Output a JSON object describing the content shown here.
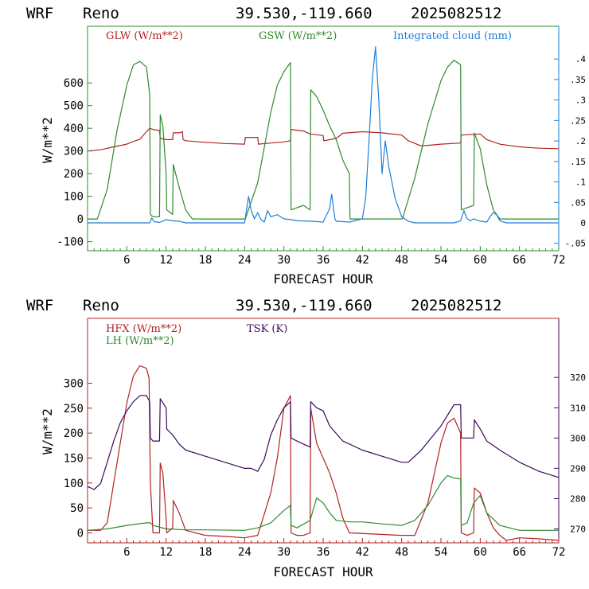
{
  "chart_data": [
    {
      "type": "line",
      "header": {
        "model": "WRF",
        "station": "Reno",
        "coords": "39.530,-119.660",
        "run": "2025082512"
      },
      "xlabel": "FORECAST HOUR",
      "ylabel": "W/m**2",
      "x_ticks": [
        6,
        12,
        18,
        24,
        30,
        36,
        42,
        48,
        54,
        60,
        66,
        72
      ],
      "xlim": [
        0,
        72
      ],
      "ylim": [
        -140,
        850
      ],
      "y_ticks": [
        -100,
        0,
        100,
        200,
        300,
        400,
        500,
        600
      ],
      "y2lim": [
        -0.068,
        0.48
      ],
      "y2_ticks": [
        -0.05,
        0,
        0.05,
        0.1,
        0.15,
        0.2,
        0.25,
        0.3,
        0.35,
        0.4
      ],
      "y2_tick_labels": [
        "-.05",
        "0",
        ".05",
        ".1",
        ".15",
        ".2",
        ".25",
        ".3",
        ".35",
        ".4"
      ],
      "series": [
        {
          "name": "GLW (W/m**2)",
          "color": "#b22222",
          "axis": "left",
          "x": [
            0,
            2,
            4,
            6,
            7,
            8,
            9,
            9.5,
            10,
            11,
            11.1,
            12,
            13,
            13.1,
            14,
            14.5,
            14.6,
            15,
            18,
            21,
            24,
            24.1,
            26,
            26.1,
            28,
            30,
            31,
            31.1,
            33,
            34,
            36,
            36.1,
            38,
            39,
            42,
            45,
            48,
            49,
            51,
            54,
            57,
            57.1,
            60,
            61,
            63,
            66,
            69,
            72
          ],
          "y": [
            300,
            305,
            318,
            330,
            342,
            352,
            385,
            400,
            395,
            390,
            355,
            350,
            350,
            380,
            380,
            385,
            350,
            345,
            338,
            333,
            330,
            360,
            360,
            330,
            335,
            340,
            345,
            395,
            388,
            375,
            368,
            345,
            355,
            378,
            385,
            380,
            370,
            345,
            322,
            330,
            335,
            370,
            375,
            350,
            330,
            318,
            312,
            310
          ]
        },
        {
          "name": "GSW (W/m**2)",
          "color": "#2e8b2e",
          "axis": "left",
          "x": [
            0,
            1.5,
            3,
            4.5,
            6,
            7,
            8,
            9,
            9.5,
            9.6,
            10,
            11,
            11.1,
            11.5,
            12,
            12.1,
            13,
            13.1,
            14,
            15,
            16,
            24,
            24.1,
            26,
            28,
            29,
            30,
            31,
            31.1,
            32,
            33,
            34,
            34.1,
            35,
            36,
            37,
            38,
            39,
            40,
            40.1,
            48,
            48.1,
            50,
            52,
            54,
            55,
            56,
            57,
            57.1,
            58,
            59,
            59.1,
            60,
            61,
            62,
            63,
            64,
            72
          ],
          "y": [
            0,
            0,
            130,
            390,
            590,
            680,
            695,
            670,
            550,
            20,
            10,
            10,
            460,
            410,
            200,
            40,
            20,
            240,
            140,
            40,
            0,
            0,
            0,
            160,
            470,
            590,
            650,
            690,
            40,
            50,
            60,
            40,
            570,
            540,
            480,
            410,
            350,
            260,
            200,
            0,
            0,
            0,
            180,
            420,
            610,
            670,
            700,
            680,
            40,
            50,
            60,
            380,
            310,
            150,
            40,
            0,
            0,
            0
          ]
        },
        {
          "name": "Integrated cloud (mm)",
          "color": "#1e7fd6",
          "axis": "right",
          "x": [
            0,
            9.5,
            9.8,
            10.2,
            11,
            12,
            13,
            14,
            15,
            24,
            24.6,
            25,
            25.5,
            26,
            26.5,
            27,
            27.5,
            28,
            29,
            30,
            31,
            32,
            34,
            36,
            37,
            37.3,
            37.8,
            38,
            40,
            42,
            42.5,
            43,
            43.5,
            44,
            44.5,
            45,
            45.5,
            46,
            47,
            48,
            49,
            50,
            56,
            57,
            57.5,
            58,
            58.5,
            59,
            60,
            61,
            61.5,
            62,
            62.5,
            63,
            64,
            72
          ],
          "y": [
            0,
            0,
            0.012,
            0.003,
            0.001,
            0.008,
            0.005,
            0.004,
            0,
            0,
            0.065,
            0.03,
            0.01,
            0.025,
            0.008,
            0.002,
            0.03,
            0.015,
            0.02,
            0.01,
            0.008,
            0.005,
            0.004,
            0.002,
            0.035,
            0.07,
            0.01,
            0.004,
            0.002,
            0.01,
            0.06,
            0.2,
            0.35,
            0.43,
            0.3,
            0.12,
            0.2,
            0.14,
            0.06,
            0.015,
            0.004,
            0,
            0,
            0.005,
            0.03,
            0.01,
            0.005,
            0.01,
            0.004,
            0.002,
            0.015,
            0.025,
            0.02,
            0.005,
            0,
            0
          ]
        }
      ]
    },
    {
      "type": "line",
      "header": {
        "model": "WRF",
        "station": "Reno",
        "coords": "39.530,-119.660",
        "run": "2025082512"
      },
      "xlabel": "FORECAST HOUR",
      "ylabel": "W/m**2",
      "x_ticks": [
        6,
        12,
        18,
        24,
        30,
        36,
        42,
        48,
        54,
        60,
        66,
        72
      ],
      "xlim": [
        0,
        72
      ],
      "ylim": [
        -20,
        430
      ],
      "y_ticks": [
        0,
        50,
        100,
        150,
        200,
        250,
        300
      ],
      "y2lim": [
        265.4,
        339.5
      ],
      "y2_ticks": [
        270,
        280,
        290,
        300,
        310,
        320
      ],
      "series": [
        {
          "name": "HFX (W/m**2)",
          "color": "#b22222",
          "axis": "left",
          "x": [
            0,
            2,
            3,
            4,
            5,
            6,
            7,
            8,
            9,
            9.4,
            9.6,
            10,
            11,
            11.1,
            11.5,
            12,
            12.1,
            13,
            13.1,
            14,
            15,
            18,
            21,
            24,
            26,
            28,
            29,
            30,
            31,
            31.1,
            32,
            33,
            34,
            34.1,
            35,
            36,
            37,
            38,
            39,
            40,
            48,
            50,
            52,
            53,
            54,
            55,
            56,
            57,
            57.1,
            58,
            59,
            59.1,
            60,
            61,
            62,
            63,
            64,
            66,
            69,
            72
          ],
          "y": [
            5,
            5,
            20,
            100,
            180,
            260,
            315,
            335,
            330,
            310,
            100,
            0,
            0,
            140,
            120,
            30,
            0,
            10,
            65,
            40,
            5,
            -5,
            -7,
            -10,
            -5,
            80,
            150,
            250,
            275,
            0,
            -5,
            -5,
            0,
            250,
            180,
            150,
            120,
            80,
            30,
            0,
            -5,
            -5,
            60,
            120,
            180,
            220,
            230,
            200,
            0,
            -5,
            0,
            90,
            80,
            40,
            10,
            -5,
            -15,
            -10,
            -12,
            -15
          ]
        },
        {
          "name": "LH (W/m**2)",
          "color": "#2e8b2e",
          "axis": "left",
          "x": [
            0,
            3,
            6,
            9,
            9.6,
            10,
            12,
            15,
            18,
            24,
            26,
            28,
            30,
            31,
            31.1,
            32,
            34,
            35,
            36,
            37,
            38,
            40,
            42,
            45,
            48,
            50,
            52,
            54,
            55,
            56,
            57,
            57.1,
            58,
            59,
            60,
            61,
            63,
            66,
            72
          ],
          "y": [
            5,
            8,
            15,
            20,
            20,
            15,
            8,
            6,
            6,
            5,
            10,
            20,
            45,
            55,
            15,
            10,
            25,
            70,
            60,
            40,
            25,
            22,
            22,
            18,
            15,
            25,
            55,
            100,
            115,
            110,
            108,
            15,
            20,
            60,
            75,
            40,
            15,
            5,
            5
          ]
        },
        {
          "name": "TSK (K)",
          "color": "#3b0a5c",
          "axis": "right",
          "x": [
            0,
            1,
            2,
            3,
            4,
            5,
            6,
            7,
            8,
            9,
            9.5,
            9.6,
            10,
            11,
            11.1,
            12,
            12.1,
            13,
            14,
            15,
            18,
            21,
            24,
            25,
            26,
            27,
            28,
            29,
            30,
            31,
            31.1,
            32,
            33,
            34,
            34.1,
            35,
            36,
            37,
            39,
            42,
            45,
            48,
            49,
            51,
            54,
            56,
            57,
            57.1,
            58,
            59,
            59.1,
            60,
            61,
            63,
            66,
            69,
            72
          ],
          "y": [
            284,
            283,
            285,
            292,
            299,
            305,
            309,
            312,
            314,
            314,
            312,
            300,
            299,
            299,
            313,
            310,
            303,
            301,
            298,
            296,
            294,
            292,
            290,
            290,
            289,
            293,
            301,
            306,
            310,
            312,
            300,
            299,
            298,
            297,
            312,
            310,
            309,
            304,
            299,
            296,
            294,
            292,
            292,
            296,
            304,
            311,
            311,
            300,
            300,
            300,
            306,
            303,
            299,
            296,
            292,
            289,
            287
          ]
        }
      ]
    }
  ]
}
